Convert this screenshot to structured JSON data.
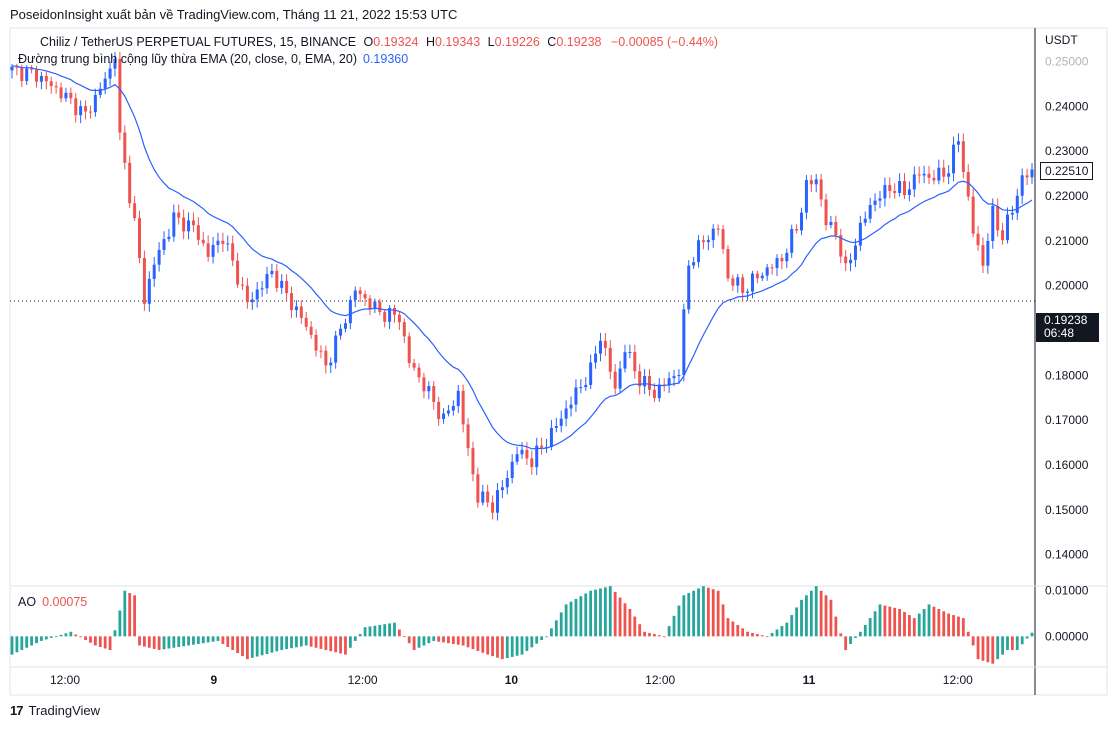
{
  "header": {
    "publisher": "PoseidonInsight xuất bản về TradingView.com, Tháng 11 21, 2022 15:53 UTC"
  },
  "legend": {
    "symbol": "Chiliz / TetherUS PERPETUAL FUTURES, 15, BINANCE",
    "o_label": "O",
    "o": "0.19324",
    "h_label": "H",
    "h": "0.19343",
    "l_label": "L",
    "l": "0.19226",
    "c_label": "C",
    "c": "0.19238",
    "change": "−0.00085 (−0.44%)",
    "ema_label": "Đường trung bình cộng lũy thừa EMA (20, close, 0, EMA, 20)",
    "ema_value": "0.19360"
  },
  "ao_legend": {
    "label": "AO",
    "value": "0.00075"
  },
  "price_axis": {
    "currency": "USDT",
    "ticks": [
      "0.25000",
      "0.24000",
      "0.23000",
      "0.22000",
      "0.21000",
      "0.20000",
      "0.18000",
      "0.17000",
      "0.16000",
      "0.15000",
      "0.14000"
    ],
    "last_price": "0.22510",
    "current_price": "0.19238",
    "countdown": "06:48"
  },
  "ao_axis": {
    "ticks": [
      "0.01000",
      "0.00000"
    ]
  },
  "time_axis": {
    "ticks": [
      "12:00",
      "9",
      "12:00",
      "10",
      "12:00",
      "11",
      "12:00"
    ]
  },
  "footer": {
    "brand": "TradingView"
  },
  "colors": {
    "up": "#2962ff",
    "down": "#ef5350",
    "ema": "#2962ff",
    "ao_up": "#26a69a",
    "ao_down": "#ef5350"
  },
  "chart_data": {
    "type": "candlestick",
    "ylim": [
      0.135,
      0.255
    ],
    "ao_ylim": [
      -0.0065,
      0.0106
    ],
    "price_anchors": [
      [
        0,
        0.248
      ],
      [
        5,
        0.247
      ],
      [
        10,
        0.243
      ],
      [
        15,
        0.238
      ],
      [
        20,
        0.248
      ],
      [
        21,
        0.252
      ],
      [
        22,
        0.233
      ],
      [
        25,
        0.214
      ],
      [
        27,
        0.197
      ],
      [
        29,
        0.205
      ],
      [
        33,
        0.215
      ],
      [
        37,
        0.213
      ],
      [
        40,
        0.207
      ],
      [
        43,
        0.211
      ],
      [
        48,
        0.196
      ],
      [
        53,
        0.203
      ],
      [
        60,
        0.191
      ],
      [
        64,
        0.182
      ],
      [
        67,
        0.19
      ],
      [
        70,
        0.199
      ],
      [
        75,
        0.194
      ],
      [
        79,
        0.193
      ],
      [
        81,
        0.183
      ],
      [
        85,
        0.176
      ],
      [
        88,
        0.17
      ],
      [
        91,
        0.176
      ],
      [
        93,
        0.163
      ],
      [
        95,
        0.153
      ],
      [
        98,
        0.151
      ],
      [
        100,
        0.155
      ],
      [
        103,
        0.163
      ],
      [
        106,
        0.161
      ],
      [
        110,
        0.167
      ],
      [
        115,
        0.176
      ],
      [
        118,
        0.181
      ],
      [
        120,
        0.189
      ],
      [
        123,
        0.177
      ],
      [
        125,
        0.186
      ],
      [
        128,
        0.179
      ],
      [
        131,
        0.176
      ],
      [
        134,
        0.179
      ],
      [
        136,
        0.181
      ],
      [
        138,
        0.205
      ],
      [
        141,
        0.21
      ],
      [
        144,
        0.213
      ],
      [
        146,
        0.202
      ],
      [
        149,
        0.199
      ],
      [
        152,
        0.202
      ],
      [
        157,
        0.206
      ],
      [
        160,
        0.213
      ],
      [
        162,
        0.222
      ],
      [
        164,
        0.224
      ],
      [
        166,
        0.214
      ],
      [
        168,
        0.212
      ],
      [
        170,
        0.203
      ],
      [
        172,
        0.21
      ],
      [
        175,
        0.218
      ],
      [
        179,
        0.222
      ],
      [
        182,
        0.221
      ],
      [
        185,
        0.225
      ],
      [
        188,
        0.224
      ],
      [
        191,
        0.226
      ],
      [
        193,
        0.233
      ],
      [
        196,
        0.212
      ],
      [
        198,
        0.205
      ],
      [
        200,
        0.216
      ],
      [
        202,
        0.211
      ],
      [
        204,
        0.217
      ],
      [
        206,
        0.224
      ],
      [
        208,
        0.2251
      ]
    ],
    "ema_start": 0.249,
    "ao_anchors": [
      [
        0,
        -0.004
      ],
      [
        6,
        -0.001
      ],
      [
        12,
        0.001
      ],
      [
        17,
        -0.002
      ],
      [
        20,
        -0.003
      ],
      [
        23,
        0.01
      ],
      [
        25,
        0.009
      ],
      [
        26,
        -0.002
      ],
      [
        30,
        -0.003
      ],
      [
        36,
        -0.002
      ],
      [
        42,
        -0.001
      ],
      [
        48,
        -0.005
      ],
      [
        55,
        -0.003
      ],
      [
        60,
        -0.002
      ],
      [
        68,
        -0.004
      ],
      [
        72,
        0.002
      ],
      [
        78,
        0.003
      ],
      [
        82,
        -0.003
      ],
      [
        86,
        -0.001
      ],
      [
        92,
        -0.002
      ],
      [
        97,
        -0.004
      ],
      [
        100,
        -0.005
      ],
      [
        104,
        -0.004
      ],
      [
        109,
        0.0
      ],
      [
        113,
        0.007
      ],
      [
        118,
        0.01
      ],
      [
        122,
        0.011
      ],
      [
        126,
        0.006
      ],
      [
        129,
        0.001
      ],
      [
        133,
        0.0
      ],
      [
        137,
        0.009
      ],
      [
        141,
        0.011
      ],
      [
        144,
        0.01
      ],
      [
        146,
        0.004
      ],
      [
        150,
        0.001
      ],
      [
        154,
        0.0
      ],
      [
        158,
        0.003
      ],
      [
        161,
        0.008
      ],
      [
        164,
        0.011
      ],
      [
        167,
        0.008
      ],
      [
        170,
        -0.003
      ],
      [
        173,
        0.001
      ],
      [
        177,
        0.007
      ],
      [
        181,
        0.006
      ],
      [
        184,
        0.004
      ],
      [
        187,
        0.007
      ],
      [
        191,
        0.005
      ],
      [
        194,
        0.004
      ],
      [
        197,
        -0.005
      ],
      [
        200,
        -0.006
      ],
      [
        203,
        -0.003
      ],
      [
        205,
        -0.003
      ],
      [
        208,
        0.0008
      ]
    ]
  }
}
